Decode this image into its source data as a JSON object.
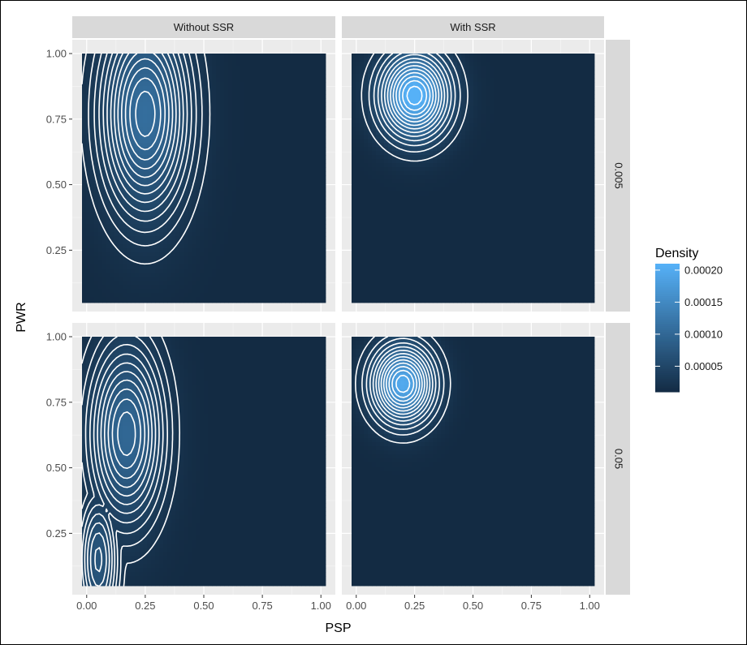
{
  "chart_data": {
    "type": "heatmap",
    "subtype": "2d density with contour lines, faceted grid",
    "xlabel": "PSP",
    "ylabel": "PWR",
    "xlim": [
      -0.02,
      1.02
    ],
    "ylim": [
      0.05,
      1.0
    ],
    "x_ticks": [
      0.0,
      0.25,
      0.5,
      0.75,
      1.0
    ],
    "x_tick_labels": [
      "0.00",
      "0.25",
      "0.50",
      "0.75",
      "1.00"
    ],
    "y_ticks": [
      0.25,
      0.5,
      0.75,
      1.0
    ],
    "y_tick_labels": [
      "0.25",
      "0.50",
      "0.75",
      "1.00"
    ],
    "column_strips": [
      "Without SSR",
      "With SSR"
    ],
    "row_strips": [
      "0.005",
      "0.05"
    ],
    "legend": {
      "title": "Density",
      "position": "right",
      "breaks": [
        5e-05,
        0.0001,
        0.00015,
        0.0002
      ],
      "break_labels": [
        "0.00005",
        "0.00010",
        "0.00015",
        "0.00020"
      ],
      "range": [
        1e-05,
        0.00021
      ],
      "low_color": "#132b43",
      "high_color": "#56b1f7"
    },
    "contour_color": "#ffffff",
    "panels": [
      {
        "col": "Without SSR",
        "row": "0.005",
        "peak_x": 0.25,
        "peak_y": 0.77,
        "peak_density": 0.0001,
        "contour_levels": 13
      },
      {
        "col": "With SSR",
        "row": "0.005",
        "peak_x": 0.25,
        "peak_y": 0.84,
        "peak_density": 0.00021,
        "contour_levels": 13
      },
      {
        "col": "Without SSR",
        "row": "0.05",
        "peak_x": 0.17,
        "peak_y": 0.63,
        "peak_density": 9e-05,
        "contour_levels": 11
      },
      {
        "col": "With SSR",
        "row": "0.05",
        "peak_x": 0.2,
        "peak_y": 0.82,
        "peak_density": 0.00019,
        "contour_levels": 13
      }
    ]
  },
  "colors": {
    "panel_background": "#ebebeb",
    "strip_background": "#d9d9d9",
    "grid_major": "#ffffff",
    "axis_text": "#4d4d4d",
    "title_text": "#000000"
  }
}
